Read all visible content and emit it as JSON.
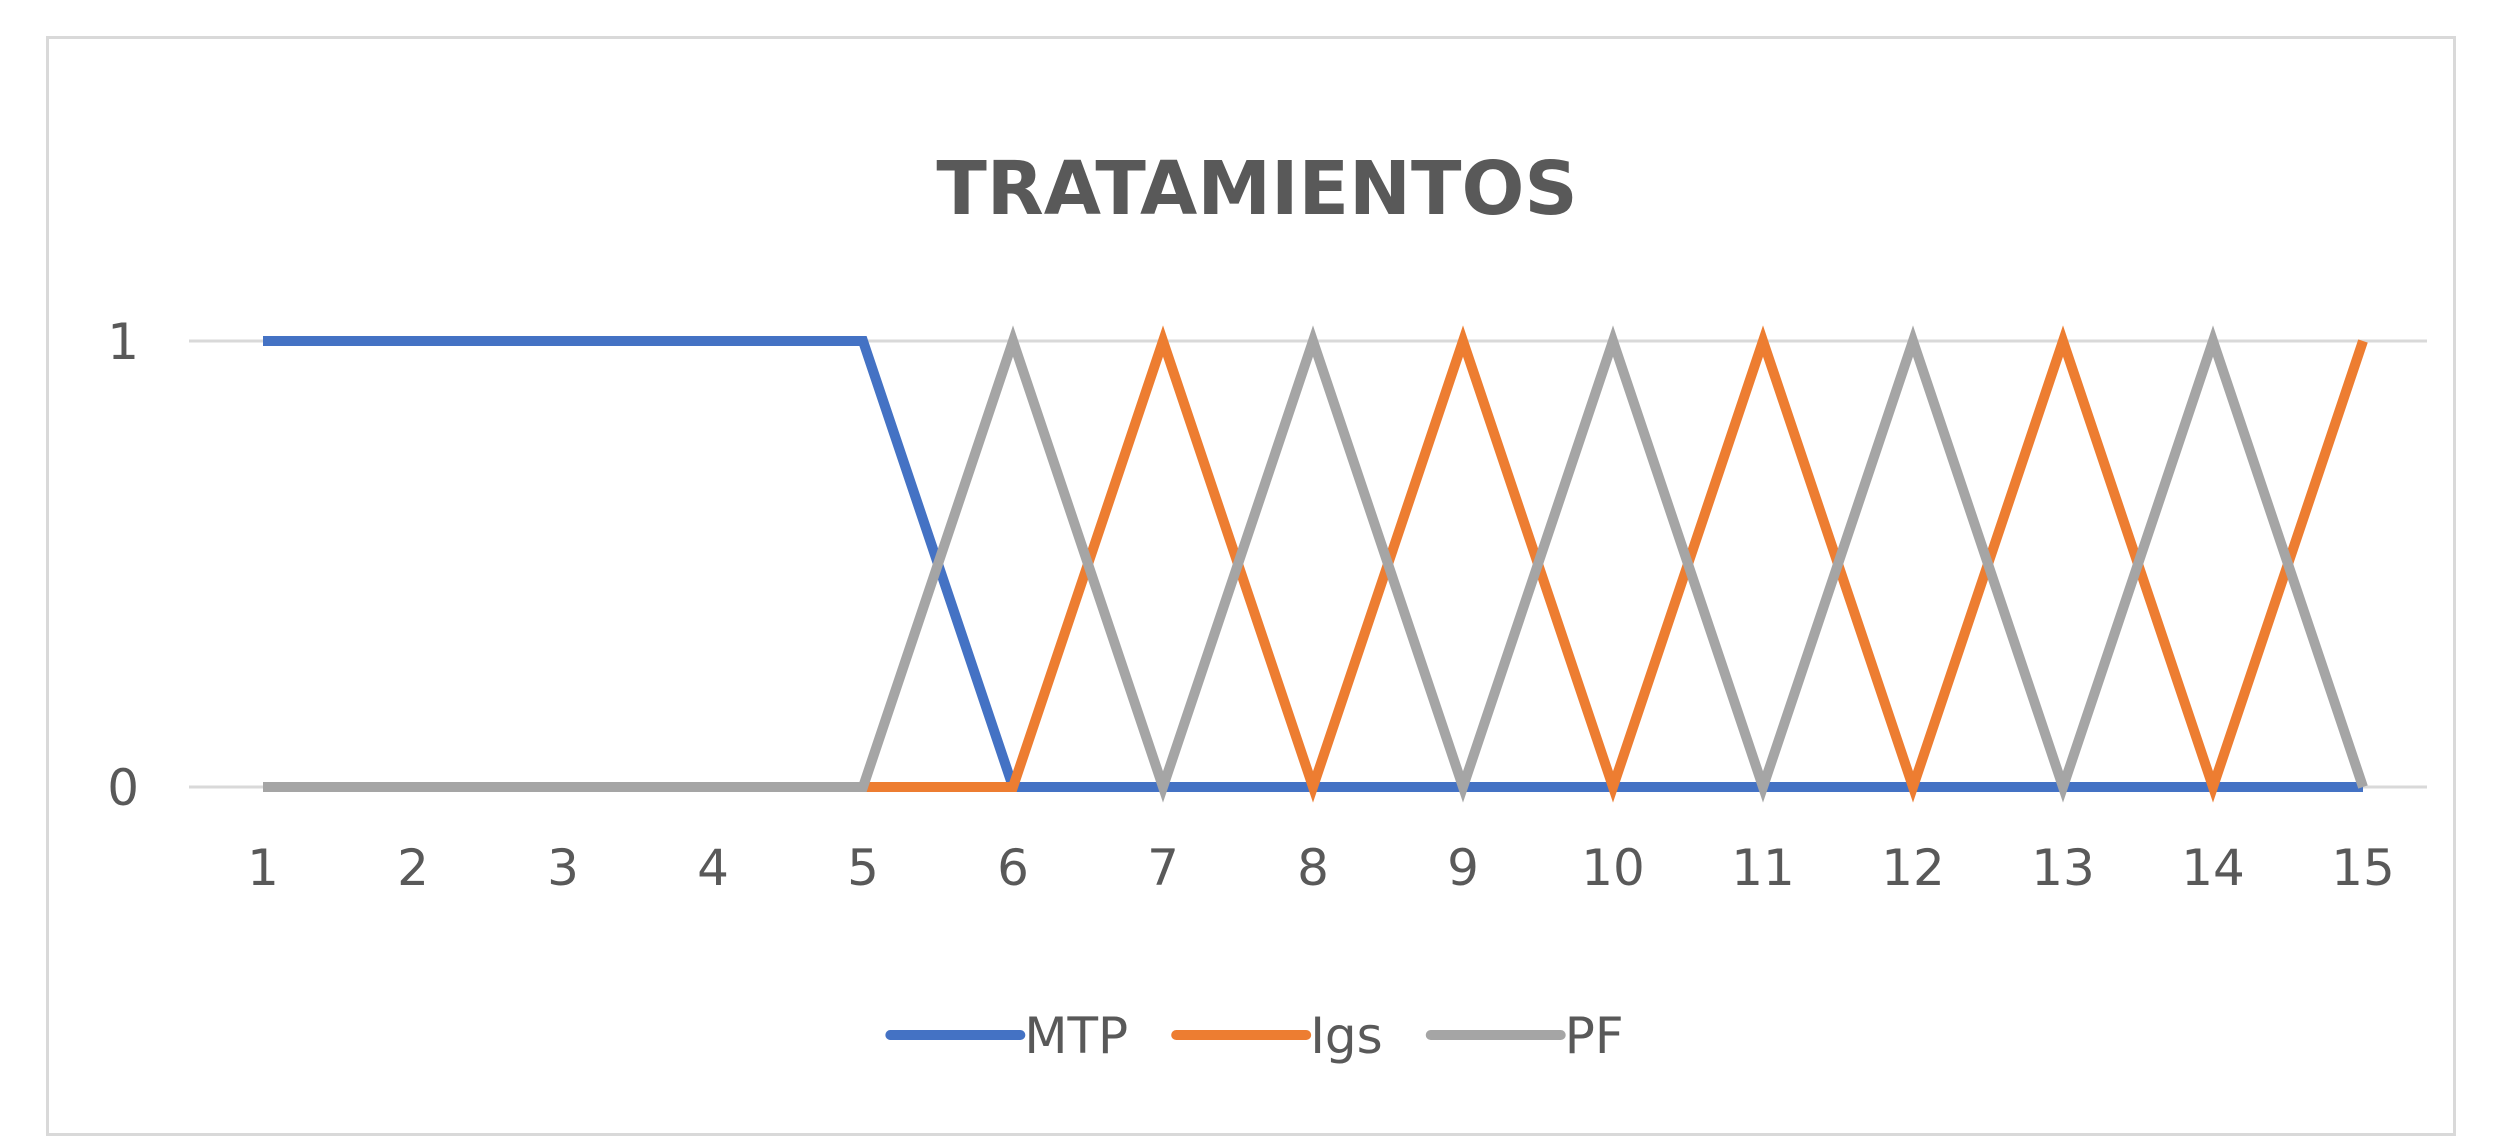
{
  "chart_data": {
    "type": "line",
    "title": "TRATAMIENTOS",
    "xlabel": "",
    "ylabel": "",
    "x": [
      1,
      2,
      3,
      4,
      5,
      6,
      7,
      8,
      9,
      10,
      11,
      12,
      13,
      14,
      15
    ],
    "x_tick_labels": [
      "1",
      "2",
      "3",
      "4",
      "5",
      "6",
      "7",
      "8",
      "9",
      "10",
      "11",
      "12",
      "13",
      "14",
      "15"
    ],
    "y_tick_labels": [
      "0",
      "1"
    ],
    "y_ticks": [
      0,
      1
    ],
    "ylim": [
      0,
      1
    ],
    "grid": true,
    "legend_position": "bottom",
    "series": [
      {
        "name": "MTP",
        "color": "#4472c4",
        "values": [
          1,
          1,
          1,
          1,
          1,
          0,
          0,
          0,
          0,
          0,
          0,
          0,
          0,
          0,
          0
        ]
      },
      {
        "name": "Igs",
        "color": "#ed7d31",
        "values": [
          0,
          0,
          0,
          0,
          0,
          0,
          1,
          0,
          1,
          0,
          1,
          0,
          1,
          0,
          1
        ]
      },
      {
        "name": "PF",
        "color": "#a5a5a5",
        "values": [
          0,
          0,
          0,
          0,
          0,
          1,
          0,
          1,
          0,
          1,
          0,
          1,
          0,
          1,
          0
        ]
      }
    ],
    "gridline_color": "#d9d9d9"
  }
}
